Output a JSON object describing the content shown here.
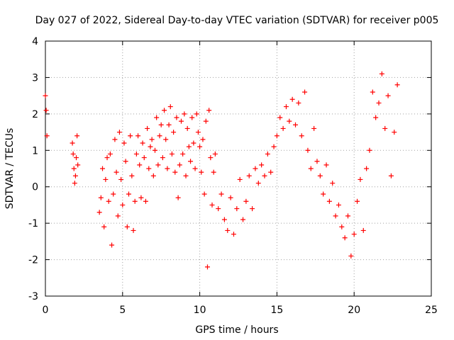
{
  "chart_data": {
    "type": "scatter",
    "title": "Day 027 of 2022, Sidereal Day-to-day VTEC variation (SDTVAR) for receiver p005",
    "xlabel": "GPS time / hours",
    "ylabel": "SDTVAR / TECUs",
    "xlim": [
      0,
      25
    ],
    "ylim": [
      -3,
      4
    ],
    "xticks": [
      0,
      5,
      10,
      15,
      20,
      25
    ],
    "yticks": [
      -3,
      -2,
      -1,
      0,
      1,
      2,
      3,
      4
    ],
    "grid": true,
    "marker": "+",
    "series": [
      {
        "name": "SDTVAR",
        "color": "#ff0000",
        "x": [
          0.0,
          0.05,
          0.1,
          1.75,
          1.8,
          1.85,
          1.9,
          1.95,
          2.0,
          2.05,
          2.1,
          3.5,
          3.6,
          3.7,
          3.8,
          3.9,
          4.0,
          4.1,
          4.2,
          4.3,
          4.4,
          4.5,
          4.6,
          4.7,
          4.8,
          4.9,
          5.0,
          5.1,
          5.2,
          5.3,
          5.4,
          5.5,
          5.6,
          5.7,
          5.8,
          5.9,
          6.0,
          6.1,
          6.2,
          6.3,
          6.4,
          6.5,
          6.6,
          6.7,
          6.8,
          6.9,
          7.0,
          7.1,
          7.2,
          7.3,
          7.4,
          7.5,
          7.6,
          7.7,
          7.8,
          7.9,
          8.0,
          8.1,
          8.2,
          8.3,
          8.4,
          8.5,
          8.6,
          8.7,
          8.8,
          8.9,
          9.0,
          9.1,
          9.2,
          9.3,
          9.4,
          9.5,
          9.6,
          9.7,
          9.8,
          9.9,
          10.0,
          10.1,
          10.2,
          10.3,
          10.4,
          10.5,
          10.6,
          10.7,
          10.8,
          10.9,
          11.0,
          11.2,
          11.4,
          11.6,
          11.8,
          12.0,
          12.2,
          12.4,
          12.6,
          12.8,
          13.0,
          13.2,
          13.4,
          13.6,
          13.8,
          14.0,
          14.2,
          14.4,
          14.6,
          14.8,
          15.0,
          15.2,
          15.4,
          15.6,
          15.8,
          16.0,
          16.2,
          16.4,
          16.6,
          16.8,
          17.0,
          17.2,
          17.4,
          17.6,
          17.8,
          18.0,
          18.2,
          18.4,
          18.6,
          18.8,
          19.0,
          19.2,
          19.4,
          19.6,
          19.8,
          20.0,
          20.2,
          20.4,
          20.6,
          20.8,
          21.0,
          21.2,
          21.4,
          21.6,
          21.8,
          22.0,
          22.2,
          22.4,
          22.6,
          22.8
        ],
        "y": [
          2.5,
          2.1,
          1.4,
          1.2,
          0.9,
          0.5,
          0.1,
          0.3,
          0.8,
          1.4,
          0.6,
          -0.7,
          -0.3,
          0.5,
          -1.1,
          0.2,
          0.8,
          -0.4,
          0.9,
          -1.6,
          -0.2,
          1.3,
          0.4,
          -0.8,
          1.5,
          0.2,
          -0.5,
          1.2,
          0.7,
          -1.1,
          -0.2,
          1.4,
          0.3,
          -1.2,
          -0.4,
          0.9,
          1.4,
          0.6,
          -0.3,
          1.2,
          0.8,
          -0.4,
          1.6,
          0.5,
          1.1,
          1.3,
          0.3,
          1.0,
          1.9,
          0.6,
          1.4,
          1.7,
          0.8,
          2.1,
          1.3,
          0.5,
          1.7,
          2.2,
          0.9,
          1.5,
          0.4,
          1.9,
          -0.3,
          0.6,
          1.8,
          0.9,
          2.0,
          0.3,
          1.6,
          1.1,
          0.7,
          1.9,
          1.2,
          0.5,
          2.0,
          1.5,
          1.1,
          0.4,
          1.3,
          -0.2,
          1.8,
          -2.2,
          2.1,
          0.8,
          -0.5,
          0.4,
          0.9,
          -0.6,
          -0.2,
          -0.9,
          -1.2,
          -0.3,
          -1.3,
          -0.6,
          0.2,
          -0.9,
          -0.4,
          0.3,
          -0.6,
          0.5,
          0.1,
          0.6,
          0.3,
          0.9,
          0.4,
          1.1,
          1.4,
          1.9,
          1.6,
          2.2,
          1.8,
          2.4,
          1.7,
          2.3,
          1.4,
          2.6,
          1.0,
          0.5,
          1.6,
          0.7,
          0.3,
          -0.2,
          0.6,
          -0.4,
          0.1,
          -0.8,
          -0.5,
          -1.1,
          -1.4,
          -0.8,
          -1.9,
          -1.3,
          -0.4,
          0.2,
          -1.2,
          0.5,
          1.0,
          2.6,
          1.9,
          2.3,
          3.1,
          1.6,
          2.5,
          0.3,
          1.5,
          2.8
        ]
      }
    ]
  }
}
